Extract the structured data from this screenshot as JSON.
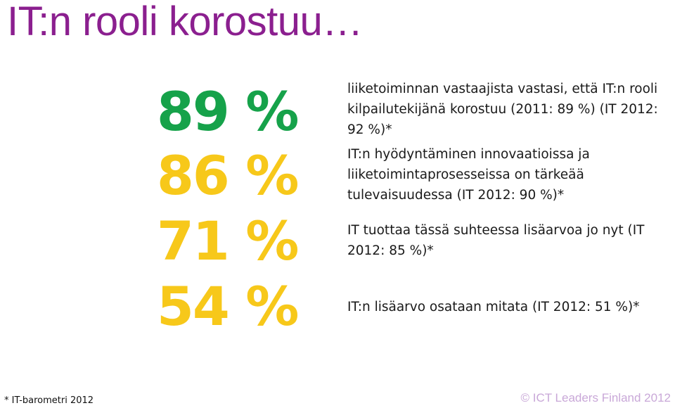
{
  "slide": {
    "title": "IT:n rooli korostuu…"
  },
  "colors": {
    "title": "#8b1f8f",
    "stat_green": "#16a24a",
    "stat_yellow": "#f7c81a",
    "copyright": "#c9a8d8"
  },
  "stats": [
    {
      "value": "89 %",
      "color": "#16a24a",
      "description": "liiketoiminnan vastaajista vastasi, että IT:n rooli kilpailutekijänä korostuu (2011: 89 %) (IT 2012: 92 %)*"
    },
    {
      "value": "86 %",
      "color": "#f7c81a",
      "description": "IT:n hyödyntäminen innovaatioissa ja liiketoimintaprosesseissa on tärkeää tulevaisuudessa (IT 2012: 90 %)*"
    },
    {
      "value": "71 %",
      "color": "#f7c81a",
      "description": "IT tuottaa tässä suhteessa lisäarvoa jo nyt (IT 2012: 85 %)*"
    },
    {
      "value": "54 %",
      "color": "#f7c81a",
      "description": "IT:n lisäarvo osataan mitata (IT 2012: 51 %)*"
    }
  ],
  "footer": {
    "footnote": "* IT-barometri 2012",
    "copyright": "© ICT Leaders Finland 2012"
  }
}
